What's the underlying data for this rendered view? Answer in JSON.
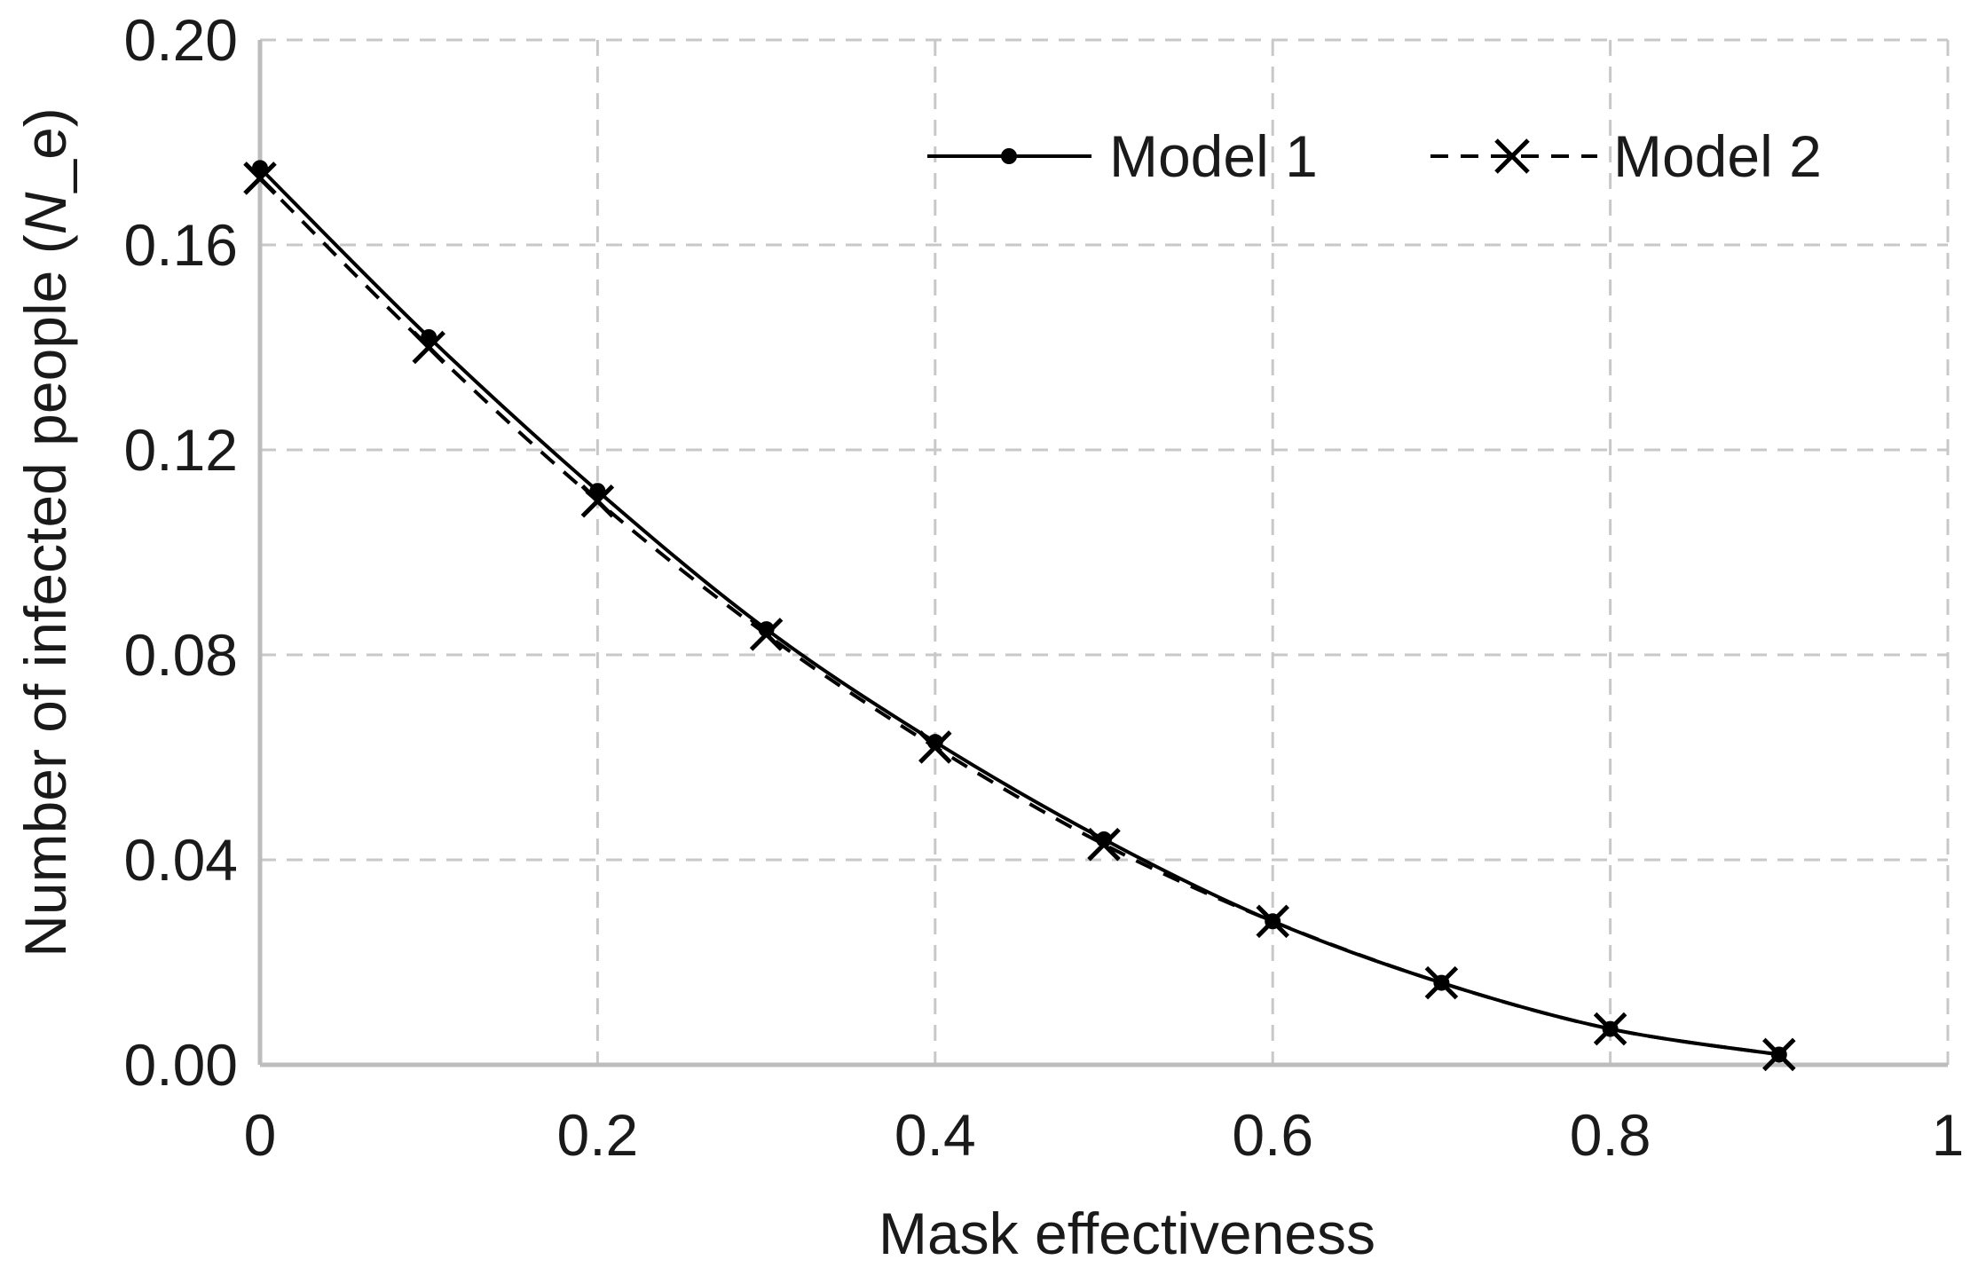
{
  "chart_data": {
    "type": "line",
    "title": "",
    "xlabel": "Mask effectiveness",
    "ylabel_prefix": "Number of infected people (",
    "ylabel_italic": "N",
    "ylabel_suffix": "_e)",
    "xlim": [
      0,
      1
    ],
    "ylim": [
      0,
      0.2
    ],
    "x_ticks": [
      0,
      0.2,
      0.4,
      0.6,
      0.8,
      1
    ],
    "x_tick_labels": [
      "0",
      "0.2",
      "0.4",
      "0.6",
      "0.8",
      "1"
    ],
    "y_ticks": [
      0,
      0.04,
      0.08,
      0.12,
      0.16,
      0.2
    ],
    "y_tick_labels": [
      "0.00",
      "0.04",
      "0.08",
      "0.12",
      "0.16",
      "0.20"
    ],
    "grid": true,
    "legend_position": "top-right",
    "x": [
      0,
      0.1,
      0.2,
      0.3,
      0.4,
      0.5,
      0.6,
      0.7,
      0.8,
      0.9
    ],
    "series": [
      {
        "name": "Model 1",
        "style": "solid",
        "marker": "dot",
        "color": "#000000",
        "values": [
          0.175,
          0.142,
          0.112,
          0.085,
          0.063,
          0.044,
          0.028,
          0.016,
          0.007,
          0.002
        ]
      },
      {
        "name": "Model 2",
        "style": "dashed",
        "marker": "x",
        "color": "#000000",
        "values": [
          0.173,
          0.14,
          0.11,
          0.084,
          0.062,
          0.043,
          0.028,
          0.016,
          0.007,
          0.002
        ]
      }
    ]
  }
}
